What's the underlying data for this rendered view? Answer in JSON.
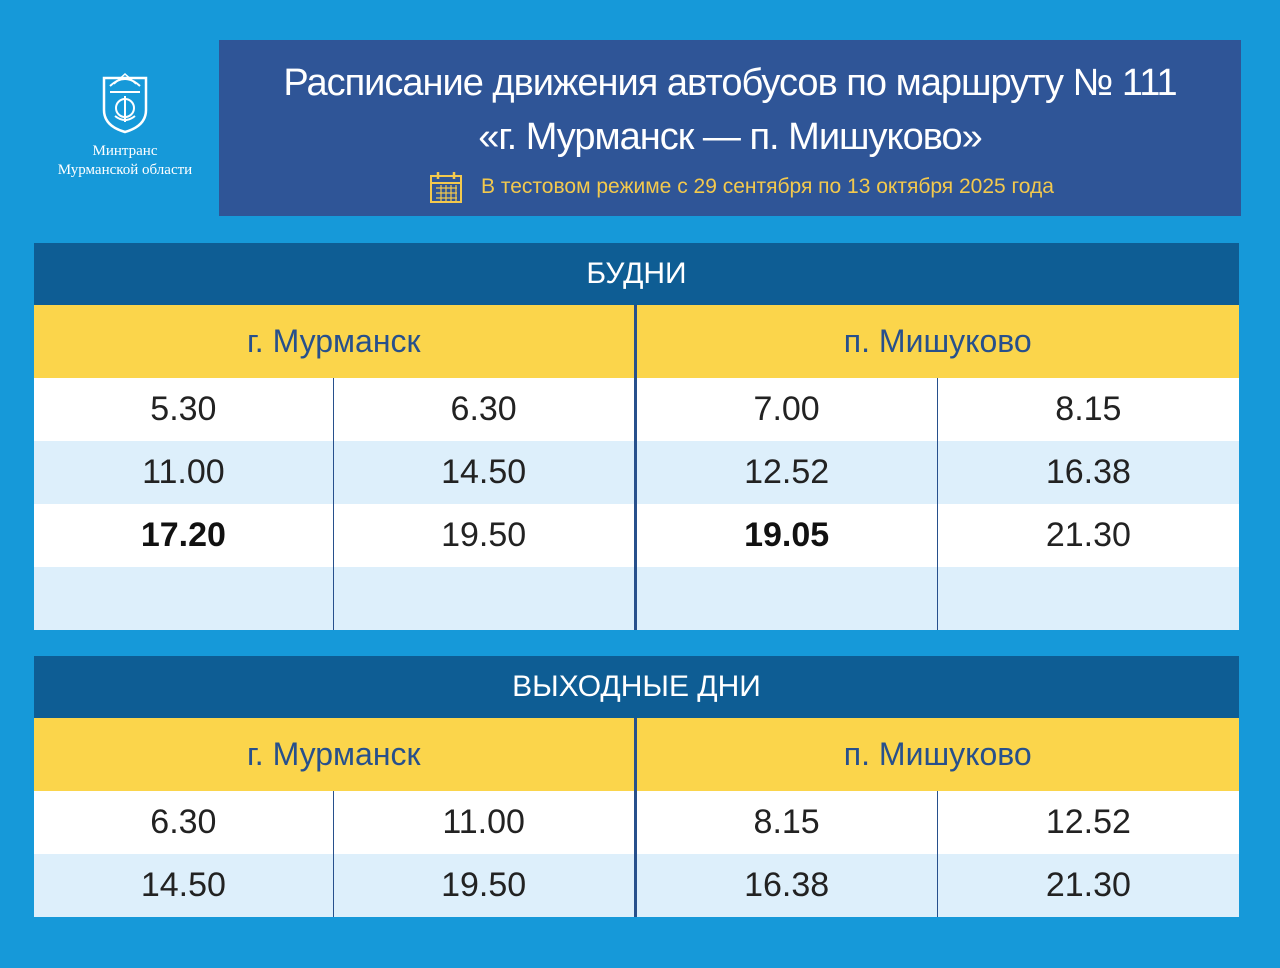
{
  "logo": {
    "line1": "Минтранс",
    "line2": "Мурманской области"
  },
  "header": {
    "title_line1": "Расписание движения автобусов по маршруту № 111",
    "title_line2": "«г. Мурманск — п. Мишуково»",
    "subtitle": "В тестовом режиме с 29 сентября по 13 октября 2025 года",
    "icon": "calendar-icon"
  },
  "weekdays": {
    "title": "БУДНИ",
    "city_left": "г.  Мурманск",
    "city_right": "п. Мишуково",
    "rows": [
      [
        "5.30",
        "6.30",
        "7.00",
        "8.15"
      ],
      [
        "11.00",
        "14.50",
        "12.52",
        "16.38"
      ],
      [
        "17.20",
        "19.50",
        "19.05",
        "21.30"
      ],
      [
        "",
        "",
        "",
        ""
      ]
    ],
    "bold": [
      [
        2,
        0
      ],
      [
        2,
        2
      ]
    ]
  },
  "weekend": {
    "title": "ВЫХОДНЫЕ ДНИ",
    "city_left": "г.  Мурманск",
    "city_right": "п. Мишуково",
    "rows": [
      [
        "6.30",
        "11.00",
        "8.15",
        "12.52"
      ],
      [
        "14.50",
        "19.50",
        "16.38",
        "21.30"
      ]
    ]
  },
  "colors": {
    "background": "#1699d9",
    "header": "#2f5597",
    "section_title": "#0e5d94",
    "city_bar": "#fbd54b",
    "subtitle": "#f3c94d"
  }
}
